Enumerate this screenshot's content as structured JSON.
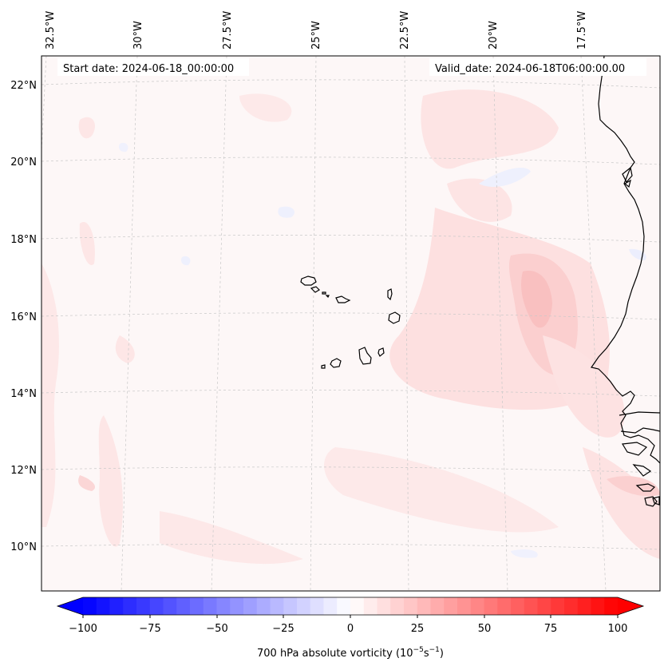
{
  "header": {
    "start_date": "Start date: 2024-06-18_00:00:00",
    "valid_date": "Valid_date: 2024-06-18T06:00:00.00"
  },
  "lon_labels": [
    "32.5°W",
    "30°W",
    "27.5°W",
    "25°W",
    "22.5°W",
    "20°W",
    "17.5°W"
  ],
  "lat_labels": [
    "22°N",
    "20°N",
    "18°N",
    "16°N",
    "14°N",
    "12°N",
    "10°N"
  ],
  "colorbar": {
    "tick_labels": [
      "−100",
      "−75",
      "−50",
      "−25",
      "0",
      "25",
      "50",
      "75",
      "100"
    ],
    "label": "700 hPa absolute vorticity (10",
    "label_exp1": "−5",
    "label_mid": "s",
    "label_exp2": "−1",
    "label_end": ")",
    "min": -100,
    "max": 100,
    "levels": 40,
    "neg_color": "#0000ff",
    "pos_color": "#ff0000"
  },
  "colors": {
    "background": "#fdf7f7",
    "coastline": "#000000",
    "grid": "#c8c8c8"
  }
}
